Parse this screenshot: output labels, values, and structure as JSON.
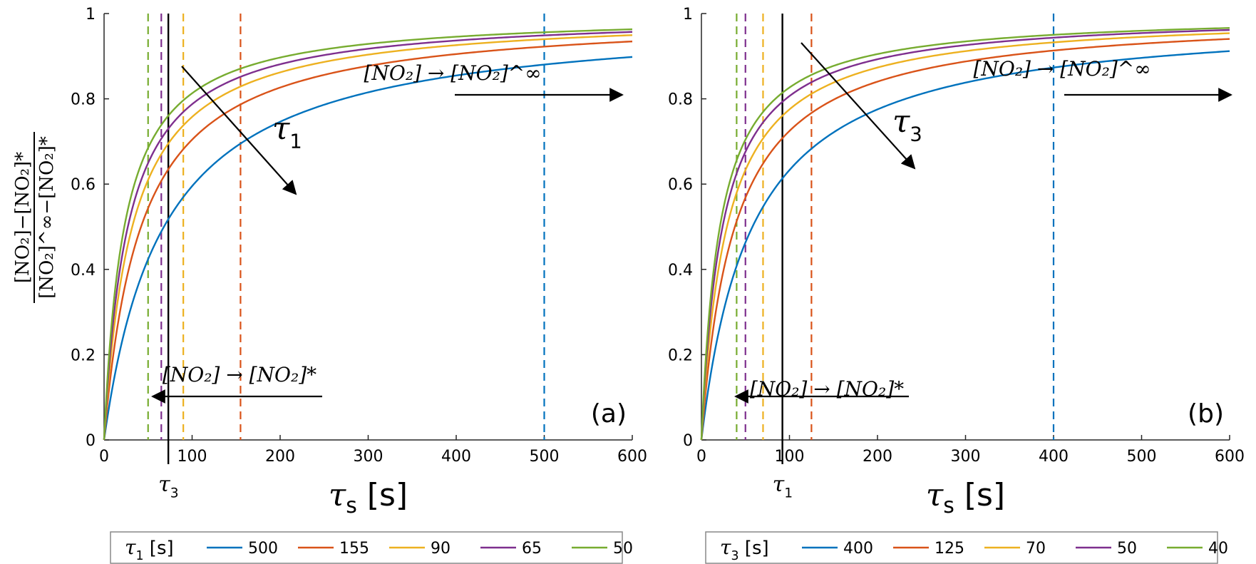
{
  "chart_data": [
    {
      "type": "line",
      "panel_label": "(a)",
      "xlabel_sym": "τ",
      "xlabel_sub": "s",
      "xlabel_unit": "[s]",
      "ylabel_num": "[NO₂]−[NO₂]*",
      "ylabel_den": "[NO₂]^∞−[NO₂]*",
      "xlim": [
        0,
        600
      ],
      "ylim": [
        0,
        1
      ],
      "xticks": [
        "0",
        "100",
        "200",
        "300",
        "400",
        "500",
        "600"
      ],
      "yticks": [
        "0",
        "0.2",
        "0.4",
        "0.6",
        "0.8",
        "1"
      ],
      "grid": false,
      "legend_title_sym": "τ",
      "legend_title_sub": "1",
      "legend_title_unit": "[s]",
      "legend_placement": "bottom",
      "fixed_param": {
        "sym": "τ",
        "sub": "3",
        "x": 73
      },
      "vary_label": {
        "sym": "τ",
        "sub": "1"
      },
      "annot_right": "[NO₂] → [NO₂]^∞",
      "annot_left": "[NO₂] → [NO₂]*",
      "model": "y = 1 / (1 + a/x)",
      "series": [
        {
          "name": "500",
          "color": "#0072BD",
          "a": 68,
          "marker_x": 500
        },
        {
          "name": "155",
          "color": "#D95319",
          "a": 42,
          "marker_x": 155
        },
        {
          "name": "90",
          "color": "#EDB120",
          "a": 32,
          "marker_x": 90
        },
        {
          "name": "65",
          "color": "#7E2F8E",
          "a": 27,
          "marker_x": 65
        },
        {
          "name": "50",
          "color": "#77AC30",
          "a": 23,
          "marker_x": 50
        }
      ],
      "sample_points": {
        "x": [
          25,
          50,
          75,
          100,
          150,
          200,
          300,
          400,
          500,
          600
        ],
        "y": {
          "500": [
            0.27,
            0.42,
            0.52,
            0.6,
            0.69,
            0.75,
            0.82,
            0.86,
            0.88,
            0.9
          ],
          "155": [
            0.37,
            0.54,
            0.64,
            0.7,
            0.78,
            0.83,
            0.88,
            0.9,
            0.92,
            0.93
          ],
          "90": [
            0.44,
            0.61,
            0.7,
            0.76,
            0.82,
            0.86,
            0.9,
            0.93,
            0.94,
            0.95
          ],
          "65": [
            0.48,
            0.65,
            0.74,
            0.79,
            0.85,
            0.88,
            0.92,
            0.94,
            0.95,
            0.96
          ],
          "50": [
            0.52,
            0.68,
            0.77,
            0.81,
            0.87,
            0.9,
            0.93,
            0.95,
            0.96,
            0.96
          ]
        }
      }
    },
    {
      "type": "line",
      "panel_label": "(b)",
      "xlabel_sym": "τ",
      "xlabel_sub": "s",
      "xlabel_unit": "[s]",
      "xlim": [
        0,
        600
      ],
      "ylim": [
        0,
        1
      ],
      "xticks": [
        "0",
        "100",
        "200",
        "300",
        "400",
        "500",
        "600"
      ],
      "yticks": [
        "0",
        "0.2",
        "0.4",
        "0.6",
        "0.8",
        "1"
      ],
      "grid": false,
      "legend_title_sym": "τ",
      "legend_title_sub": "3",
      "legend_title_unit": "[s]",
      "legend_placement": "bottom",
      "fixed_param": {
        "sym": "τ",
        "sub": "1",
        "x": 92
      },
      "vary_label": {
        "sym": "τ",
        "sub": "3"
      },
      "annot_right": "[NO₂] → [NO₂]^∞",
      "annot_left": "[NO₂] → [NO₂]*",
      "model": "y = 1 / (1 + a/x)",
      "series": [
        {
          "name": "400",
          "color": "#0072BD",
          "a": 58,
          "marker_x": 400
        },
        {
          "name": "125",
          "color": "#D95319",
          "a": 38,
          "marker_x": 125
        },
        {
          "name": "70",
          "color": "#EDB120",
          "a": 29,
          "marker_x": 70
        },
        {
          "name": "50",
          "color": "#7E2F8E",
          "a": 24,
          "marker_x": 50
        },
        {
          "name": "40",
          "color": "#77AC30",
          "a": 21,
          "marker_x": 40
        }
      ],
      "sample_points": {
        "x": [
          25,
          50,
          75,
          100,
          150,
          200,
          300,
          400,
          500,
          600
        ],
        "y": {
          "400": [
            0.3,
            0.46,
            0.56,
            0.63,
            0.72,
            0.78,
            0.84,
            0.87,
            0.9,
            0.91
          ],
          "125": [
            0.4,
            0.57,
            0.66,
            0.72,
            0.8,
            0.84,
            0.89,
            0.91,
            0.93,
            0.94
          ],
          "70": [
            0.46,
            0.63,
            0.72,
            0.78,
            0.84,
            0.87,
            0.91,
            0.93,
            0.95,
            0.95
          ],
          "50": [
            0.51,
            0.68,
            0.76,
            0.81,
            0.86,
            0.89,
            0.93,
            0.94,
            0.95,
            0.96
          ],
          "40": [
            0.54,
            0.7,
            0.78,
            0.83,
            0.88,
            0.9,
            0.93,
            0.95,
            0.96,
            0.97
          ]
        }
      }
    }
  ]
}
